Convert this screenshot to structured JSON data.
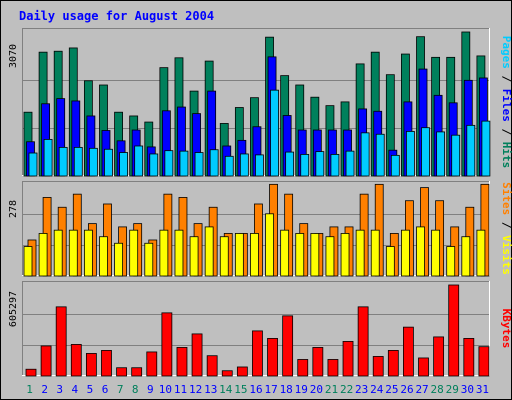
{
  "chart_data": [
    {
      "type": "bar",
      "title": "Daily usage for August 2004",
      "ylim": [
        0,
        3070
      ],
      "ytick_label": "3070",
      "series": [
        {
          "name": "Pages",
          "color": "#00ccff",
          "values": [
            490,
            780,
            610,
            610,
            590,
            570,
            500,
            640,
            470,
            540,
            530,
            500,
            560,
            420,
            470,
            450,
            1830,
            510,
            460,
            520,
            460,
            530,
            920,
            890,
            440,
            950,
            1030,
            940,
            870,
            1080,
            1170
          ]
        },
        {
          "name": "Files",
          "color": "#0000ff",
          "values": [
            730,
            1540,
            1650,
            1600,
            1280,
            970,
            750,
            980,
            620,
            1390,
            1470,
            1330,
            1810,
            640,
            760,
            1050,
            2540,
            1290,
            980,
            980,
            980,
            980,
            1430,
            1380,
            550,
            1580,
            2280,
            1720,
            1560,
            2040,
            2090
          ]
        },
        {
          "name": "Hits",
          "color": "#00805c",
          "values": [
            1360,
            2640,
            2660,
            2730,
            2030,
            1940,
            1360,
            1280,
            1150,
            2310,
            2520,
            1810,
            2450,
            1120,
            1460,
            1670,
            2960,
            2140,
            1940,
            1680,
            1500,
            1580,
            2390,
            2640,
            2160,
            2600,
            2970,
            2530,
            2530,
            3070,
            2560
          ]
        }
      ]
    },
    {
      "type": "bar",
      "ylim": [
        0,
        278
      ],
      "ytick_label": "278",
      "series": [
        {
          "name": "Visits",
          "color": "#ffff00",
          "values": [
            90,
            130,
            140,
            140,
            140,
            120,
            100,
            140,
            100,
            140,
            140,
            120,
            150,
            120,
            130,
            130,
            190,
            140,
            130,
            130,
            120,
            130,
            140,
            140,
            90,
            140,
            150,
            140,
            90,
            120,
            140
          ]
        },
        {
          "name": "Sites",
          "color": "#ff8000",
          "values": [
            110,
            240,
            210,
            250,
            160,
            220,
            150,
            160,
            110,
            250,
            240,
            160,
            210,
            130,
            130,
            220,
            280,
            250,
            160,
            130,
            150,
            150,
            250,
            280,
            130,
            230,
            270,
            230,
            150,
            210,
            280
          ]
        }
      ]
    },
    {
      "type": "bar",
      "ylim": [
        0,
        605297
      ],
      "ytick_label": "605297",
      "series": [
        {
          "name": "KBytes",
          "color": "#ff0000",
          "values": [
            45000,
            200000,
            460000,
            210000,
            150000,
            170000,
            55000,
            55000,
            160000,
            420000,
            190000,
            280000,
            135000,
            35000,
            60000,
            300000,
            250000,
            400000,
            110000,
            190000,
            110000,
            230000,
            460000,
            130000,
            170000,
            325000,
            120000,
            260000,
            605297,
            250000,
            195000
          ]
        }
      ]
    }
  ],
  "x_labels": [
    "1",
    "2",
    "3",
    "4",
    "5",
    "6",
    "7",
    "8",
    "9",
    "10",
    "11",
    "12",
    "13",
    "14",
    "15",
    "16",
    "17",
    "18",
    "19",
    "20",
    "21",
    "22",
    "23",
    "24",
    "25",
    "26",
    "27",
    "28",
    "29",
    "30",
    "31"
  ],
  "x_label_colors": [
    "#00805c",
    "#0000ff",
    "#0000ff",
    "#0000ff",
    "#0000ff",
    "#0000ff",
    "#00805c",
    "#00805c",
    "#0000ff",
    "#0000ff",
    "#0000ff",
    "#0000ff",
    "#0000ff",
    "#00805c",
    "#00805c",
    "#0000ff",
    "#0000ff",
    "#0000ff",
    "#0000ff",
    "#0000ff",
    "#00805c",
    "#00805c",
    "#0000ff",
    "#0000ff",
    "#0000ff",
    "#0000ff",
    "#0000ff",
    "#00805c",
    "#00805c",
    "#0000ff",
    "#0000ff"
  ],
  "right_labels": {
    "top": [
      {
        "text": "Pages",
        "color": "#00ccff"
      },
      {
        "text": " / ",
        "color": "#000000"
      },
      {
        "text": "Files",
        "color": "#0000ff"
      },
      {
        "text": " / ",
        "color": "#000000"
      },
      {
        "text": "Hits",
        "color": "#00805c"
      }
    ],
    "mid": [
      {
        "text": "Sites",
        "color": "#ff8000"
      },
      {
        "text": " / ",
        "color": "#000000"
      },
      {
        "text": "Visits",
        "color": "#ffff00"
      }
    ],
    "bot": [
      {
        "text": "KBytes",
        "color": "#ff0000"
      }
    ]
  },
  "colors": {
    "title": "#0000ff",
    "background": "#bfbfbf",
    "grid": "#808080",
    "frame_light": "#ffffff",
    "frame_dark": "#808080"
  }
}
